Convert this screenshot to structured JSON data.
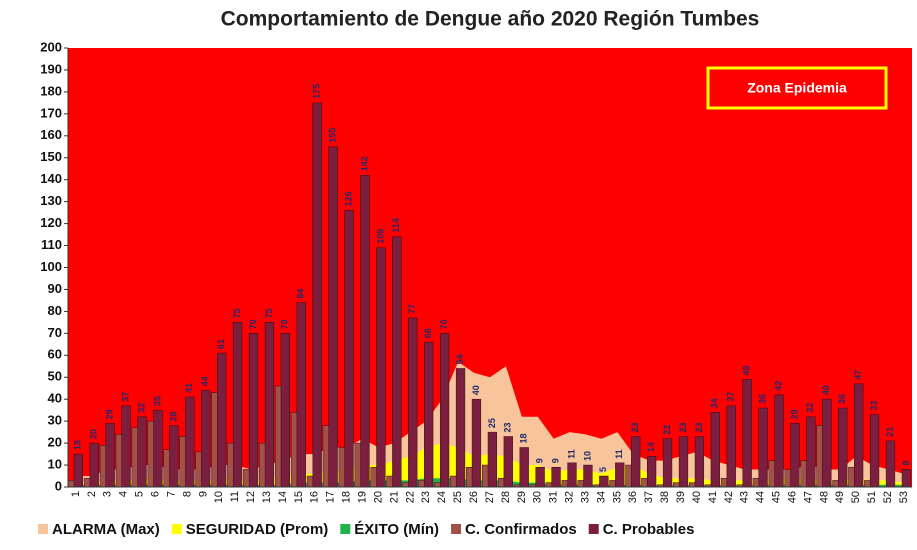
{
  "chart_data": {
    "type": "bar",
    "title": "Comportamiento de Dengue año  2020 Región Tumbes",
    "annotation": "Zona Epidemia",
    "background_color": "#ff0000",
    "categories": [
      "1",
      "2",
      "3",
      "4",
      "5",
      "6",
      "7",
      "8",
      "9",
      "10",
      "11",
      "12",
      "13",
      "14",
      "15",
      "16",
      "17",
      "18",
      "19",
      "20",
      "21",
      "22",
      "23",
      "24",
      "25",
      "26",
      "27",
      "28",
      "29",
      "30",
      "31",
      "32",
      "33",
      "34",
      "35",
      "36",
      "37",
      "38",
      "39",
      "40",
      "41",
      "42",
      "43",
      "44",
      "45",
      "46",
      "47",
      "48",
      "49",
      "50",
      "51",
      "52",
      "53"
    ],
    "ylim": [
      0,
      200
    ],
    "yticks": [
      0,
      10,
      20,
      30,
      40,
      50,
      60,
      70,
      80,
      90,
      100,
      110,
      120,
      130,
      140,
      150,
      160,
      170,
      180,
      190,
      200
    ],
    "series": [
      {
        "name": "ALARMA (Max)",
        "kind": "area",
        "color": "#f8c49c",
        "values": [
          5,
          5,
          8,
          8,
          10,
          10,
          8,
          8,
          8,
          10,
          10,
          8,
          10,
          12,
          15,
          15,
          18,
          18,
          22,
          18,
          20,
          25,
          30,
          40,
          57,
          52,
          50,
          55,
          32,
          32,
          22,
          25,
          24,
          22,
          25,
          15,
          12,
          12,
          14,
          16,
          12,
          10,
          8,
          8,
          8,
          8,
          10,
          8,
          8,
          14,
          10,
          8,
          6
        ]
      },
      {
        "name": "SEGURIDAD (Prom)",
        "kind": "area",
        "color": "#ffff00",
        "values": [
          2,
          2,
          3,
          3,
          4,
          4,
          3,
          3,
          3,
          4,
          4,
          3,
          4,
          5,
          6,
          6,
          7,
          8,
          10,
          10,
          12,
          14,
          18,
          20,
          18,
          14,
          15,
          14,
          10,
          10,
          7,
          8,
          8,
          6,
          9,
          10,
          6,
          4,
          4,
          4,
          3,
          3,
          3,
          3,
          4,
          4,
          4,
          3,
          3,
          4,
          3,
          3,
          2
        ]
      },
      {
        "name": "ÉXITO (Mín)",
        "kind": "area",
        "color": "#22b14c",
        "values": [
          1,
          1,
          1,
          1,
          1,
          1,
          1,
          1,
          1,
          1,
          1,
          1,
          1,
          1,
          2,
          2,
          2,
          2,
          3,
          3,
          3,
          3,
          4,
          4,
          4,
          3,
          3,
          3,
          2,
          2,
          1,
          1,
          1,
          1,
          1,
          1,
          1,
          1,
          1,
          1,
          1,
          1,
          1,
          1,
          1,
          1,
          1,
          1,
          1,
          1,
          1,
          1,
          1
        ]
      },
      {
        "name": "C. Confirmados",
        "kind": "bar",
        "color": "#a0524a",
        "values": [
          3,
          4,
          19,
          24,
          27,
          30,
          17,
          23,
          16,
          43,
          20,
          8,
          20,
          46,
          34,
          5,
          28,
          18,
          20,
          9,
          5,
          2,
          3,
          2,
          5,
          9,
          10,
          4,
          1,
          1,
          2,
          3,
          3,
          1,
          3,
          10,
          4,
          1,
          2,
          2,
          1,
          4,
          1,
          4,
          12,
          8,
          12,
          28,
          3,
          9,
          3,
          0,
          0
        ]
      },
      {
        "name": "C. Probables",
        "kind": "bar",
        "color": "#7a1f3d",
        "labels": true,
        "values": [
          15,
          20,
          29,
          37,
          32,
          35,
          28,
          41,
          44,
          61,
          75,
          70,
          75,
          70,
          84,
          175,
          155,
          126,
          142,
          109,
          114,
          77,
          66,
          70,
          54,
          40,
          25,
          23,
          18,
          9,
          9,
          11,
          10,
          5,
          11,
          23,
          14,
          22,
          23,
          23,
          34,
          37,
          49,
          36,
          42,
          29,
          32,
          40,
          36,
          47,
          33,
          21,
          8
        ]
      }
    ]
  }
}
